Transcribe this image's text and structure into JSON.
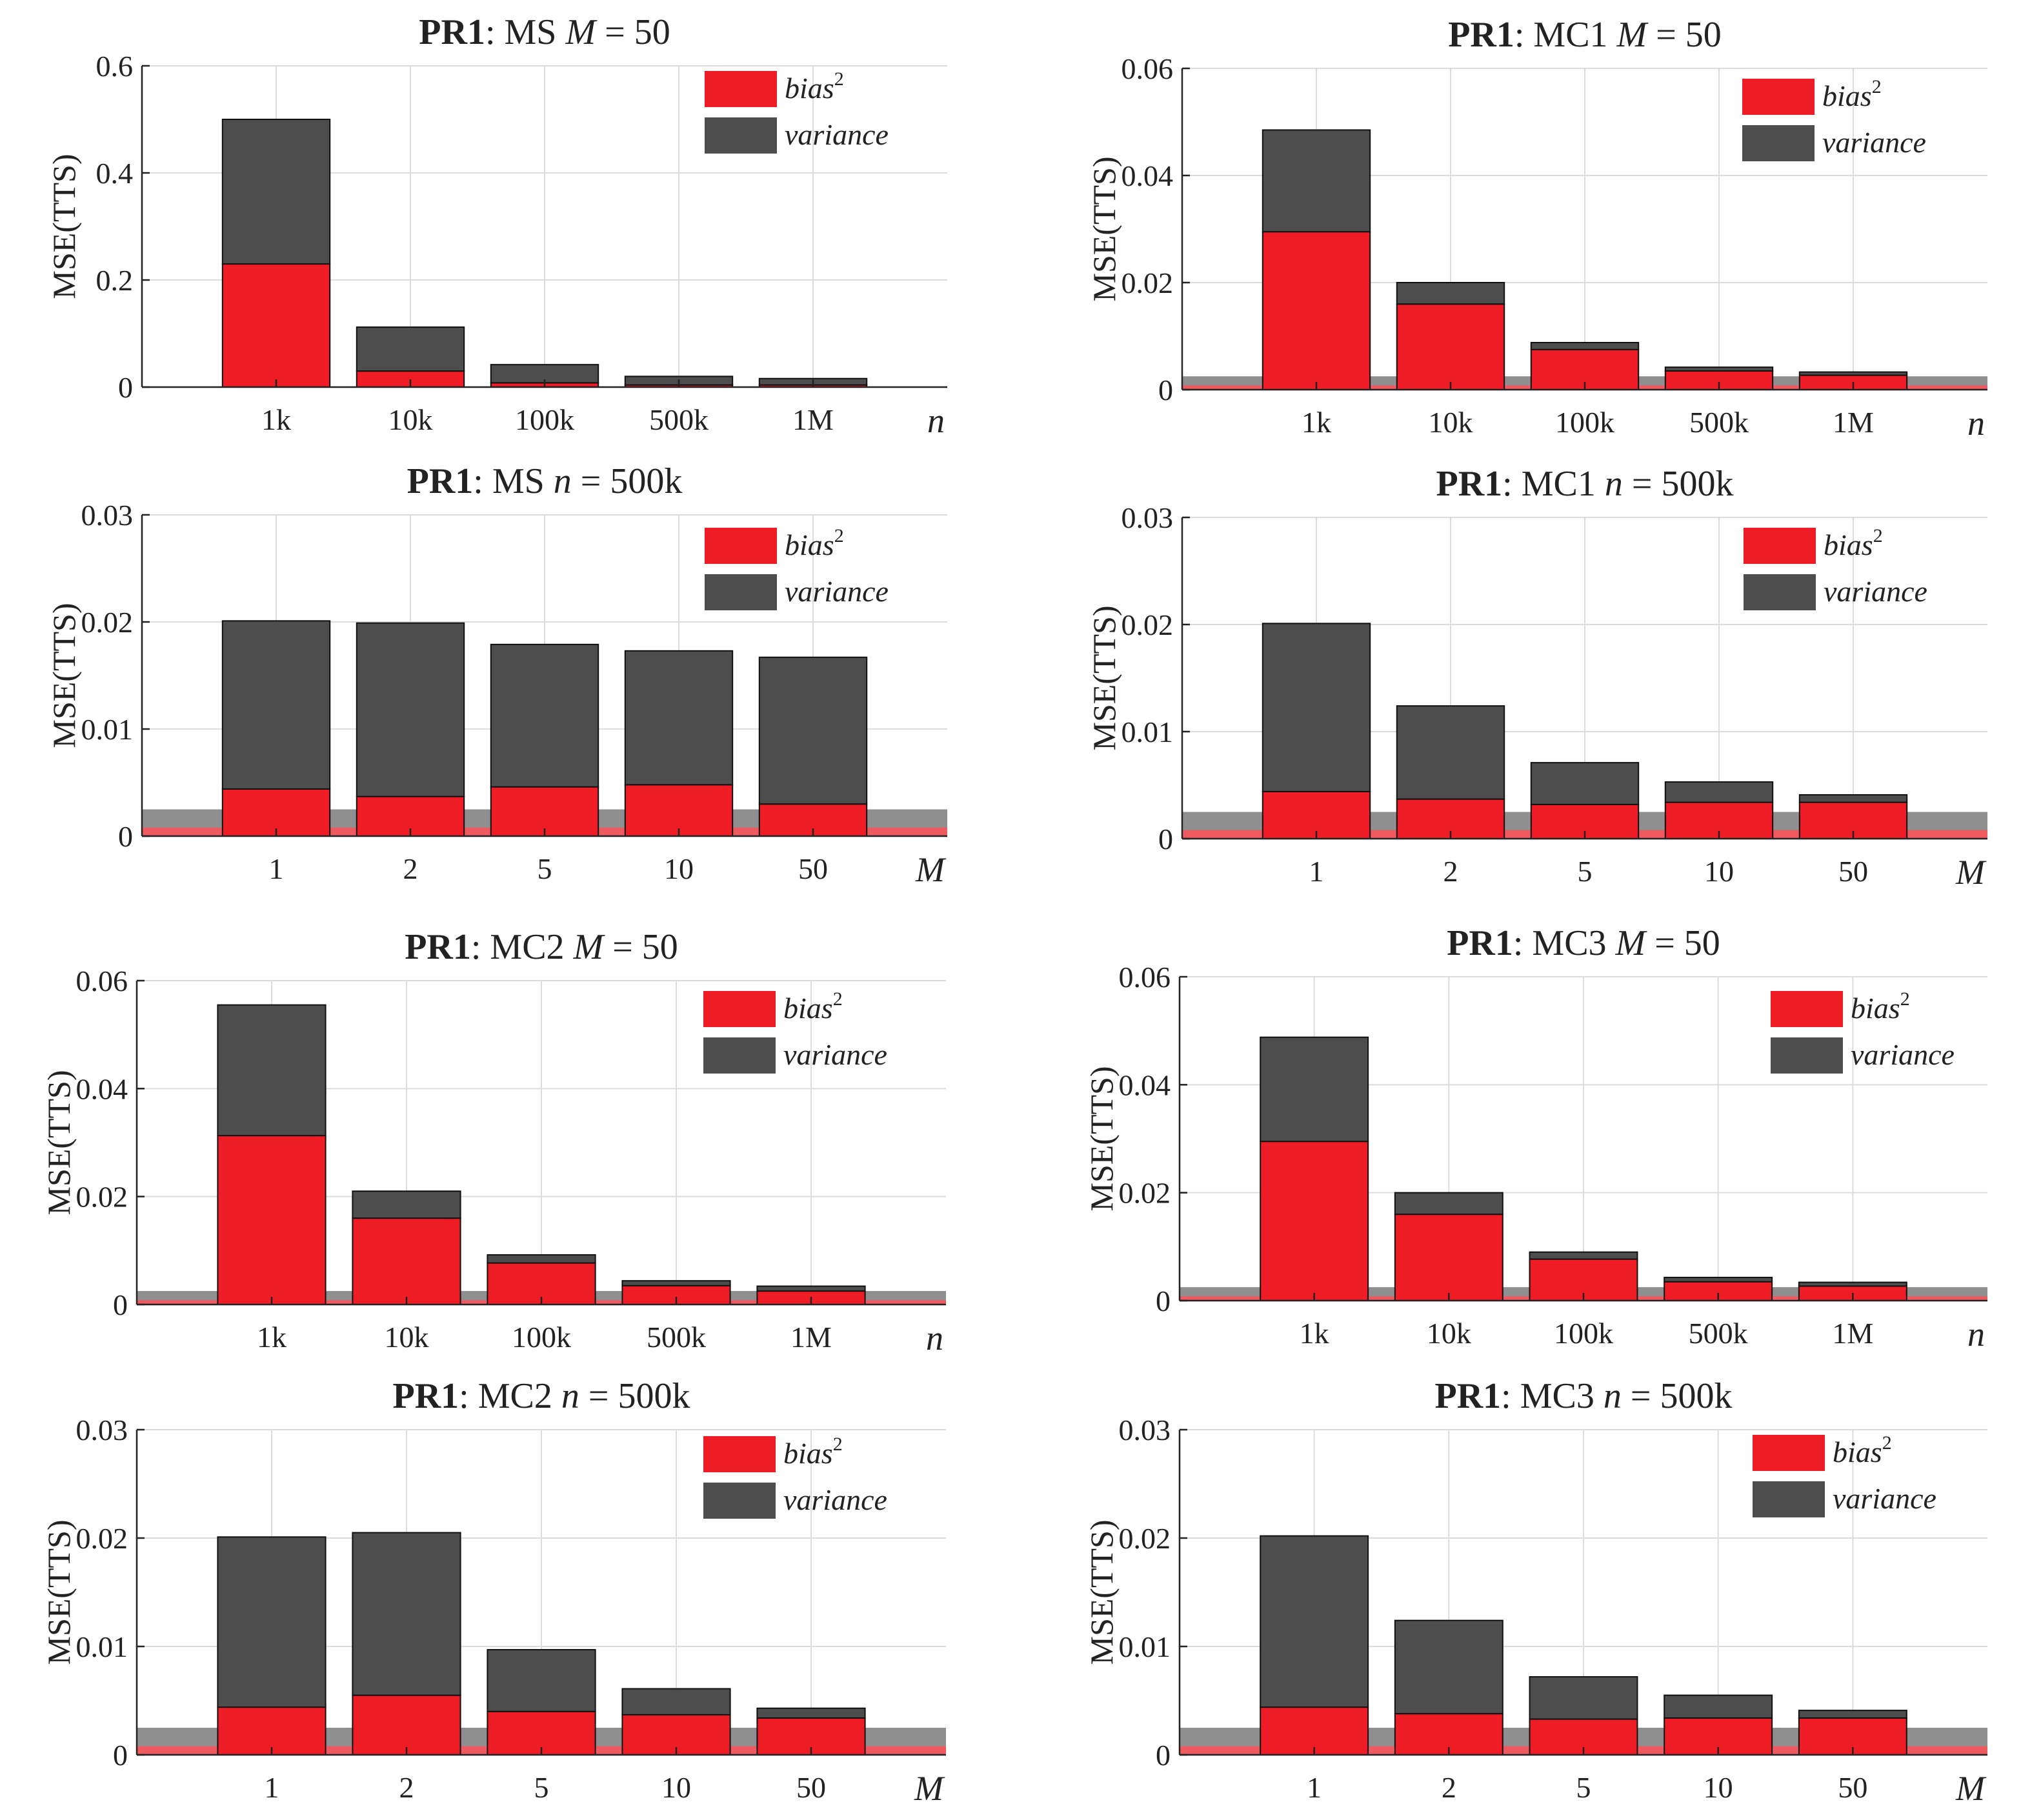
{
  "colors": {
    "bias": "#ee1c25",
    "variance": "#4d4d4d",
    "band_variance": "#8f8f8f",
    "band_bias": "#ee5a60",
    "grid": "#dcdcdc",
    "axis": "#222222"
  },
  "legend": {
    "bias_label": "bias",
    "bias_sup": "2",
    "variance_label": "variance"
  },
  "chart_data": [
    {
      "type": "bar",
      "stacked": true,
      "title_bold": "PR1",
      "title_rest": ": MS ",
      "title_var": "M",
      "title_eq": " = 50",
      "ylabel": "MSE(TTS)",
      "xlabel": "n",
      "categories": [
        "1k",
        "10k",
        "100k",
        "500k",
        "1M"
      ],
      "ylim": [
        0,
        0.6
      ],
      "yticks": [
        "0",
        "0.2",
        "0.4",
        "0.6"
      ],
      "ytick_values": [
        0,
        0.2,
        0.4,
        0.6
      ],
      "series": [
        {
          "name": "bias2",
          "values": [
            0.23,
            0.03,
            0.008,
            0.004,
            0.004
          ]
        },
        {
          "name": "variance",
          "values": [
            0.27,
            0.082,
            0.034,
            0.016,
            0.012
          ]
        }
      ],
      "band": null,
      "legend_position": "top-right",
      "grid": true
    },
    {
      "type": "bar",
      "stacked": true,
      "title_bold": "PR1",
      "title_rest": ": MC1 ",
      "title_var": "M",
      "title_eq": " = 50",
      "ylabel": "MSE(TTS)",
      "xlabel": "n",
      "categories": [
        "1k",
        "10k",
        "100k",
        "500k",
        "1M"
      ],
      "ylim": [
        0,
        0.06
      ],
      "yticks": [
        "0",
        "0.02",
        "0.04",
        "0.06"
      ],
      "ytick_values": [
        0,
        0.02,
        0.04,
        0.06
      ],
      "series": [
        {
          "name": "bias2",
          "values": [
            0.0295,
            0.016,
            0.0075,
            0.0035,
            0.0027
          ]
        },
        {
          "name": "variance",
          "values": [
            0.019,
            0.004,
            0.0013,
            0.0007,
            0.0006
          ]
        }
      ],
      "band": {
        "bias": 0.0008,
        "total": 0.0025
      },
      "legend_position": "top-right",
      "grid": true
    },
    {
      "type": "bar",
      "stacked": true,
      "title_bold": "PR1",
      "title_rest": ": MS ",
      "title_var": "n",
      "title_eq": " = 500k",
      "ylabel": "MSE(TTS)",
      "xlabel": "M",
      "categories": [
        "1",
        "2",
        "5",
        "10",
        "50"
      ],
      "ylim": [
        0,
        0.03
      ],
      "yticks": [
        "0",
        "0.01",
        "0.02",
        "0.03"
      ],
      "ytick_values": [
        0,
        0.01,
        0.02,
        0.03
      ],
      "series": [
        {
          "name": "bias2",
          "values": [
            0.0044,
            0.0037,
            0.0046,
            0.0048,
            0.003
          ]
        },
        {
          "name": "variance",
          "values": [
            0.0157,
            0.0162,
            0.0133,
            0.0125,
            0.0137
          ]
        }
      ],
      "band": {
        "bias": 0.0008,
        "total": 0.0025
      },
      "legend_position": "top-right",
      "grid": true
    },
    {
      "type": "bar",
      "stacked": true,
      "title_bold": "PR1",
      "title_rest": ": MC1 ",
      "title_var": "n",
      "title_eq": " = 500k",
      "ylabel": "MSE(TTS)",
      "xlabel": "M",
      "categories": [
        "1",
        "2",
        "5",
        "10",
        "50"
      ],
      "ylim": [
        0,
        0.03
      ],
      "yticks": [
        "0",
        "0.01",
        "0.02",
        "0.03"
      ],
      "ytick_values": [
        0,
        0.01,
        0.02,
        0.03
      ],
      "series": [
        {
          "name": "bias2",
          "values": [
            0.0044,
            0.0037,
            0.0032,
            0.0034,
            0.0034
          ]
        },
        {
          "name": "variance",
          "values": [
            0.0157,
            0.0087,
            0.0039,
            0.0019,
            0.0007
          ]
        }
      ],
      "band": {
        "bias": 0.0008,
        "total": 0.0025
      },
      "legend_position": "top-right",
      "grid": true
    },
    {
      "type": "bar",
      "stacked": true,
      "title_bold": "PR1",
      "title_rest": ": MC2 ",
      "title_var": "M",
      "title_eq": " = 50",
      "ylabel": "MSE(TTS)",
      "xlabel": "n",
      "categories": [
        "1k",
        "10k",
        "100k",
        "500k",
        "1M"
      ],
      "ylim": [
        0,
        0.06
      ],
      "yticks": [
        "0",
        "0.02",
        "0.04",
        "0.06"
      ],
      "ytick_values": [
        0,
        0.02,
        0.04,
        0.06
      ],
      "series": [
        {
          "name": "bias2",
          "values": [
            0.0313,
            0.016,
            0.0077,
            0.0035,
            0.0025
          ]
        },
        {
          "name": "variance",
          "values": [
            0.0242,
            0.005,
            0.0015,
            0.0009,
            0.0009
          ]
        }
      ],
      "band": {
        "bias": 0.0008,
        "total": 0.0025
      },
      "legend_position": "top-right",
      "grid": true
    },
    {
      "type": "bar",
      "stacked": true,
      "title_bold": "PR1",
      "title_rest": ": MC3 ",
      "title_var": "M",
      "title_eq": " = 50",
      "ylabel": "MSE(TTS)",
      "xlabel": "n",
      "categories": [
        "1k",
        "10k",
        "100k",
        "500k",
        "1M"
      ],
      "ylim": [
        0,
        0.06
      ],
      "yticks": [
        "0",
        "0.02",
        "0.04",
        "0.06"
      ],
      "ytick_values": [
        0,
        0.02,
        0.04,
        0.06
      ],
      "series": [
        {
          "name": "bias2",
          "values": [
            0.0295,
            0.016,
            0.0077,
            0.0035,
            0.0027
          ]
        },
        {
          "name": "variance",
          "values": [
            0.0193,
            0.004,
            0.0013,
            0.0008,
            0.0007
          ]
        }
      ],
      "band": {
        "bias": 0.0008,
        "total": 0.0025
      },
      "legend_position": "top-right",
      "grid": true
    },
    {
      "type": "bar",
      "stacked": true,
      "title_bold": "PR1",
      "title_rest": ": MC2 ",
      "title_var": "n",
      "title_eq": " = 500k",
      "ylabel": "MSE(TTS)",
      "xlabel": "M",
      "categories": [
        "1",
        "2",
        "5",
        "10",
        "50"
      ],
      "ylim": [
        0,
        0.03
      ],
      "yticks": [
        "0",
        "0.01",
        "0.02",
        "0.03"
      ],
      "ytick_values": [
        0,
        0.01,
        0.02,
        0.03
      ],
      "series": [
        {
          "name": "bias2",
          "values": [
            0.0044,
            0.0055,
            0.004,
            0.0037,
            0.0034
          ]
        },
        {
          "name": "variance",
          "values": [
            0.0157,
            0.015,
            0.0057,
            0.0024,
            0.0009
          ]
        }
      ],
      "band": {
        "bias": 0.0008,
        "total": 0.0025
      },
      "legend_position": "top-right",
      "grid": true
    },
    {
      "type": "bar",
      "stacked": true,
      "title_bold": "PR1",
      "title_rest": ": MC3 ",
      "title_var": "n",
      "title_eq": " = 500k",
      "ylabel": "MSE(TTS)",
      "xlabel": "M",
      "categories": [
        "1",
        "2",
        "5",
        "10",
        "50"
      ],
      "ylim": [
        0,
        0.03
      ],
      "yticks": [
        "0",
        "0.01",
        "0.02",
        "0.03"
      ],
      "ytick_values": [
        0,
        0.01,
        0.02,
        0.03
      ],
      "series": [
        {
          "name": "bias2",
          "values": [
            0.0044,
            0.0038,
            0.0033,
            0.0034,
            0.0034
          ]
        },
        {
          "name": "variance",
          "values": [
            0.0158,
            0.0086,
            0.0039,
            0.0021,
            0.0007
          ]
        }
      ],
      "band": {
        "bias": 0.0008,
        "total": 0.0025
      },
      "legend_position": "top-right",
      "grid": true
    }
  ]
}
